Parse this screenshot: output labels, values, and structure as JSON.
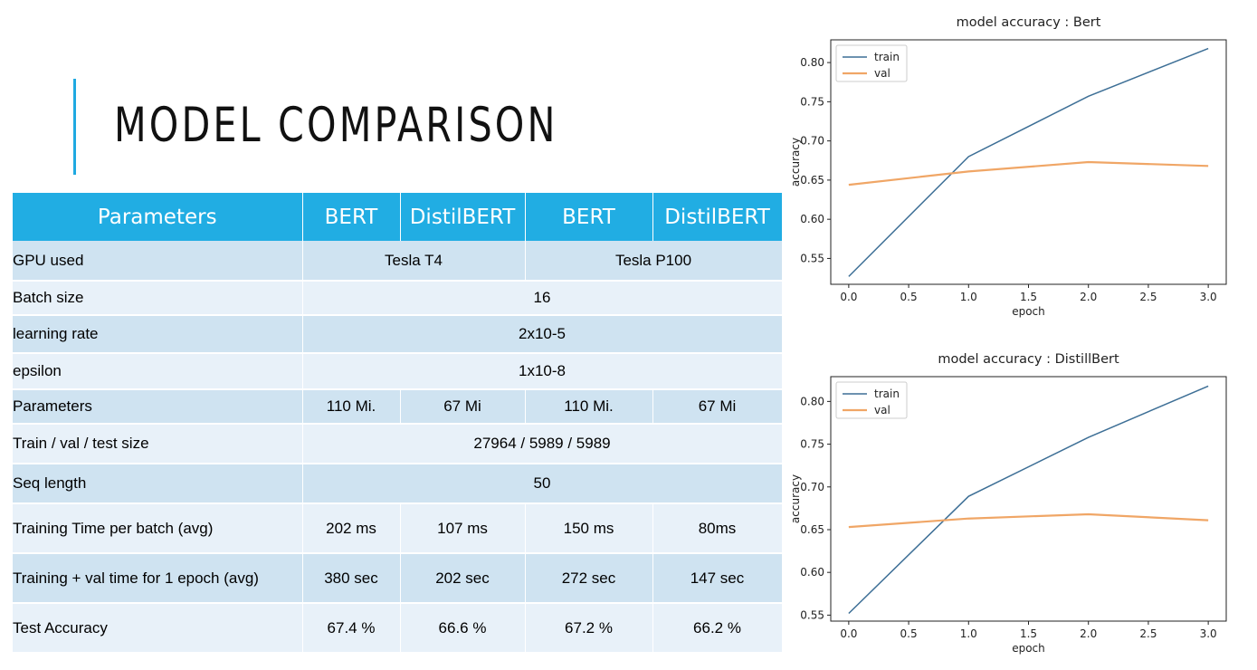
{
  "page": {
    "title": "MODEL COMPARISON",
    "accent_color": "#1fa9e1"
  },
  "table": {
    "header_color": "#21ade3",
    "row_color_a": "#cfe3f1",
    "row_color_b": "#e8f1f9",
    "headers": [
      "Parameters",
      "BERT",
      "DistilBERT",
      "BERT",
      "DistilBERT"
    ],
    "rows": [
      {
        "label": "GPU used",
        "cells": [
          {
            "text": "Tesla T4",
            "span": 2
          },
          {
            "text": "Tesla P100",
            "span": 2
          }
        ]
      },
      {
        "label": "Batch size",
        "cells": [
          {
            "text": "16",
            "span": 4
          }
        ]
      },
      {
        "label": "learning  rate",
        "cells": [
          {
            "text": "2x10-5",
            "span": 4
          }
        ]
      },
      {
        "label": "epsilon",
        "cells": [
          {
            "text": "1x10-8",
            "span": 4
          }
        ]
      },
      {
        "label": "Parameters",
        "cells": [
          {
            "text": "110 Mi.",
            "span": 1
          },
          {
            "text": "67 Mi",
            "span": 1
          },
          {
            "text": "110 Mi.",
            "span": 1
          },
          {
            "text": "67 Mi",
            "span": 1
          }
        ]
      },
      {
        "label": "Train / val / test size",
        "cells": [
          {
            "text": "27964 / 5989 / 5989",
            "span": 4
          }
        ]
      },
      {
        "label": "Seq length",
        "cells": [
          {
            "text": "50",
            "span": 4
          }
        ]
      },
      {
        "label": "Training Time per batch (avg)",
        "cells": [
          {
            "text": "202 ms",
            "span": 1
          },
          {
            "text": "107 ms",
            "span": 1
          },
          {
            "text": "150 ms",
            "span": 1
          },
          {
            "text": "80ms",
            "span": 1
          }
        ]
      },
      {
        "label": "Training + val time for 1 epoch (avg)",
        "cells": [
          {
            "text": "380 sec",
            "span": 1
          },
          {
            "text": "202 sec",
            "span": 1
          },
          {
            "text": "272 sec",
            "span": 1
          },
          {
            "text": "147 sec",
            "span": 1
          }
        ]
      },
      {
        "label": "Test Accuracy",
        "cells": [
          {
            "text": "67.4 %",
            "span": 1
          },
          {
            "text": "66.6 %",
            "span": 1
          },
          {
            "text": "67.2 %",
            "span": 1
          },
          {
            "text": "66.2 %",
            "span": 1
          }
        ]
      }
    ]
  },
  "chart_data": [
    {
      "type": "line",
      "title": "model accuracy : Bert",
      "xlabel": "epoch",
      "ylabel": "accuracy",
      "x": [
        0,
        1,
        2,
        3
      ],
      "xlim": [
        -0.15,
        3.15
      ],
      "ylim": [
        0.517,
        0.829
      ],
      "xticks": [
        "0.0",
        "0.5",
        "1.0",
        "1.5",
        "2.0",
        "2.5",
        "3.0"
      ],
      "yticks": [
        "0.55",
        "0.60",
        "0.65",
        "0.70",
        "0.75",
        "0.80"
      ],
      "legend": "top-left",
      "grid": false,
      "series": [
        {
          "name": "train",
          "color": "#3d6f96",
          "values": [
            0.527,
            0.68,
            0.757,
            0.818
          ]
        },
        {
          "name": "val",
          "color": "#f0a666",
          "values": [
            0.644,
            0.661,
            0.673,
            0.668
          ]
        }
      ]
    },
    {
      "type": "line",
      "title": "model accuracy : DistillBert",
      "xlabel": "epoch",
      "ylabel": "accuracy",
      "x": [
        0,
        1,
        2,
        3
      ],
      "xlim": [
        -0.15,
        3.15
      ],
      "ylim": [
        0.543,
        0.829
      ],
      "xticks": [
        "0.0",
        "0.5",
        "1.0",
        "1.5",
        "2.0",
        "2.5",
        "3.0"
      ],
      "yticks": [
        "0.55",
        "0.60",
        "0.65",
        "0.70",
        "0.75",
        "0.80"
      ],
      "legend": "top-left",
      "grid": false,
      "series": [
        {
          "name": "train",
          "color": "#3d6f96",
          "values": [
            0.552,
            0.689,
            0.758,
            0.818
          ]
        },
        {
          "name": "val",
          "color": "#f0a666",
          "values": [
            0.653,
            0.663,
            0.668,
            0.661
          ]
        }
      ]
    }
  ]
}
